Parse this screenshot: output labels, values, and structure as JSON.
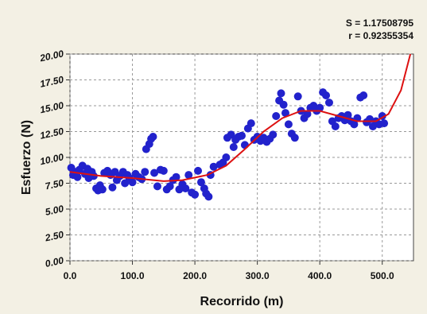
{
  "chart_data": {
    "type": "scatter",
    "annotations": [
      "S = 1.17508795",
      "r = 0.92355354"
    ],
    "xlabel": "Recorrido (m)",
    "ylabel": "Esfuerzo (N)",
    "xlim": [
      0,
      550
    ],
    "ylim": [
      0,
      20
    ],
    "xticks": [
      {
        "value": 0,
        "label": "0.0"
      },
      {
        "value": 100,
        "label": "100.0"
      },
      {
        "value": 200,
        "label": "200.0"
      },
      {
        "value": 300,
        "label": "300.0"
      },
      {
        "value": 400,
        "label": "400.0"
      },
      {
        "value": 500,
        "label": "500.0"
      }
    ],
    "yticks": [
      {
        "value": 0,
        "label": "0.00"
      },
      {
        "value": 2.5,
        "label": "2.50"
      },
      {
        "value": 5,
        "label": "5.00"
      },
      {
        "value": 7.5,
        "label": "7.50"
      },
      {
        "value": 10,
        "label": "10.00"
      },
      {
        "value": 12.5,
        "label": "12.50"
      },
      {
        "value": 15,
        "label": "15.00"
      },
      {
        "value": 17.5,
        "label": "17.50"
      },
      {
        "value": 20,
        "label": "20.00"
      }
    ],
    "grid": true,
    "series": [
      {
        "type": "scatter",
        "color": "#2222cc",
        "x": [
          2,
          5,
          8,
          12,
          15,
          20,
          24,
          28,
          30,
          35,
          38,
          42,
          45,
          48,
          52,
          55,
          60,
          65,
          68,
          72,
          75,
          80,
          85,
          88,
          92,
          95,
          100,
          105,
          110,
          115,
          120,
          122,
          127,
          130,
          133,
          135,
          140,
          145,
          150,
          155,
          160,
          165,
          170,
          175,
          180,
          185,
          190,
          195,
          200,
          205,
          210,
          215,
          218,
          222,
          225,
          230,
          240,
          245,
          250,
          252,
          258,
          262,
          265,
          270,
          275,
          280,
          285,
          290,
          295,
          300,
          305,
          310,
          315,
          320,
          325,
          330,
          335,
          338,
          342,
          345,
          350,
          355,
          360,
          365,
          370,
          375,
          380,
          385,
          390,
          395,
          400,
          405,
          410,
          415,
          420,
          425,
          430,
          435,
          440,
          445,
          450,
          455,
          460,
          465,
          470,
          475,
          480,
          485,
          490,
          495,
          500,
          503
        ],
        "values": [
          9.0,
          8.3,
          8.6,
          8.1,
          8.8,
          9.2,
          8.4,
          8.9,
          8.0,
          8.6,
          8.2,
          7.0,
          6.8,
          7.3,
          6.9,
          8.5,
          8.7,
          8.3,
          7.1,
          8.6,
          7.8,
          8.2,
          8.6,
          7.5,
          8.3,
          8.0,
          7.6,
          8.4,
          8.1,
          7.9,
          8.6,
          10.8,
          11.3,
          11.8,
          12.0,
          8.5,
          7.2,
          8.8,
          8.7,
          6.9,
          7.2,
          7.8,
          8.1,
          6.9,
          7.4,
          7.0,
          8.3,
          6.6,
          6.4,
          8.7,
          7.6,
          7.0,
          6.5,
          6.2,
          8.3,
          9.1,
          9.3,
          9.5,
          10.0,
          11.9,
          12.2,
          11.0,
          11.7,
          12.0,
          12.1,
          11.2,
          12.8,
          13.3,
          11.7,
          12.0,
          11.6,
          11.9,
          11.5,
          11.8,
          12.2,
          14.0,
          15.5,
          16.2,
          15.1,
          14.3,
          13.2,
          12.3,
          11.9,
          15.9,
          14.5,
          13.8,
          14.2,
          14.8,
          15.0,
          14.5,
          14.8,
          16.3,
          16.0,
          15.3,
          13.5,
          13.0,
          13.8,
          14.0,
          13.6,
          14.1,
          13.5,
          13.2,
          13.8,
          15.8,
          16.0,
          13.4,
          13.7,
          13.0,
          13.5,
          13.2,
          14.0,
          13.3
        ]
      },
      {
        "type": "line",
        "color": "#dd1111",
        "x": [
          0,
          50,
          100,
          150,
          180,
          220,
          250,
          280,
          310,
          340,
          370,
          400,
          430,
          460,
          490,
          510,
          530,
          545
        ],
        "values": [
          8.6,
          8.2,
          8.0,
          7.7,
          7.8,
          8.3,
          9.2,
          10.8,
          12.5,
          13.8,
          14.5,
          14.5,
          14.0,
          13.5,
          13.5,
          14.2,
          16.5,
          20.0
        ]
      }
    ]
  }
}
